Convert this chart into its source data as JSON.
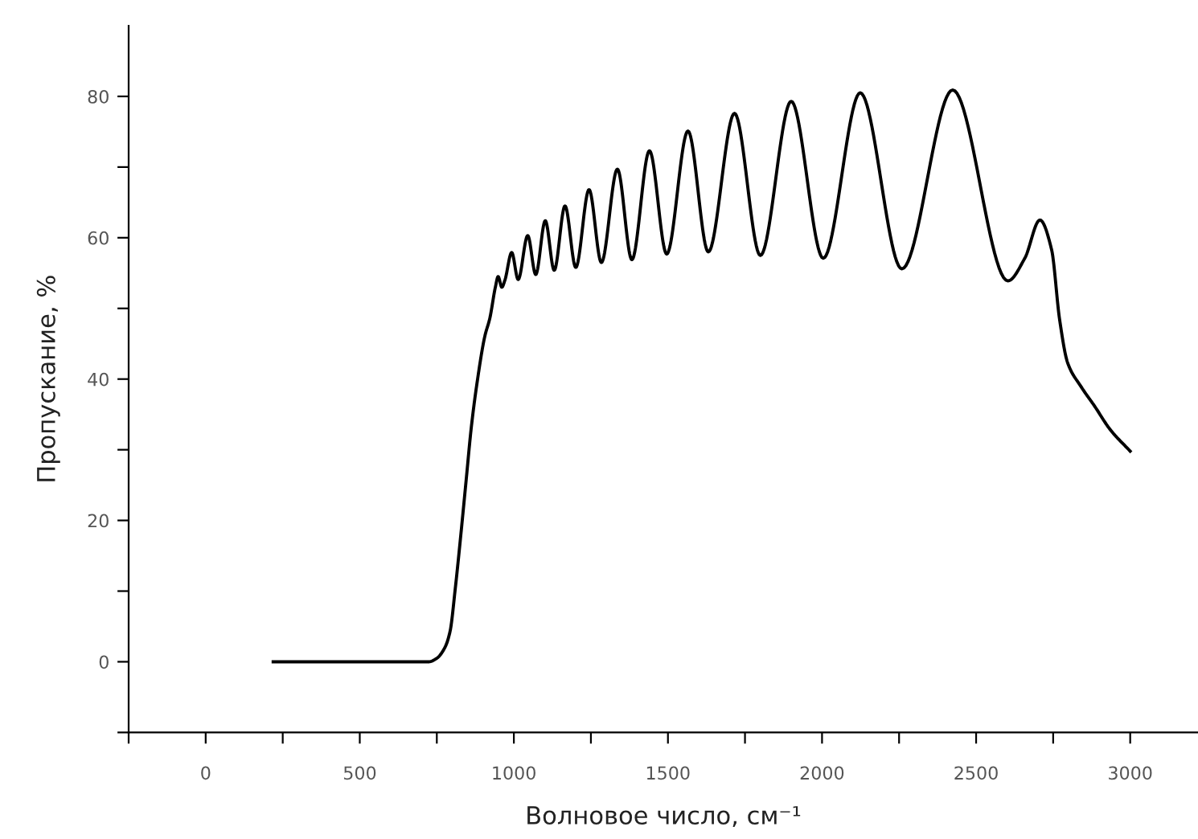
{
  "chart_data": {
    "type": "line",
    "xlabel": "Волновое число, см⁻¹",
    "ylabel": "Пропускание, %",
    "x": [
      219,
      724,
      750,
      776,
      793,
      810,
      828,
      845,
      862,
      880,
      906,
      922,
      940,
      949,
      961,
      971,
      993,
      1014,
      1045,
      1071,
      1102,
      1131,
      1166,
      1201,
      1244,
      1284,
      1336,
      1383,
      1440,
      1496,
      1565,
      1631,
      1716,
      1800,
      1900,
      2004,
      2124,
      2259,
      2424,
      2603,
      2658,
      2707,
      2745,
      2771,
      2797,
      2841,
      2884,
      2936,
      3000
    ],
    "series": [
      {
        "color": "#000000",
        "values": [
          0,
          0,
          0.5,
          2,
          4.3,
          10.4,
          18,
          25.6,
          33.2,
          39.3,
          46.1,
          48.6,
          53,
          54.5,
          53,
          54,
          57.9,
          54.1,
          60.3,
          54.8,
          62.4,
          55.4,
          64.5,
          55.8,
          66.8,
          56.5,
          69.7,
          56.9,
          72.3,
          57.7,
          75.1,
          58,
          77.6,
          57.5,
          79.3,
          57.1,
          80.5,
          55.6,
          80.9,
          53.9,
          57.1,
          62.5,
          58.3,
          48.4,
          42.3,
          38.9,
          36.2,
          32.8,
          29.8
        ]
      }
    ],
    "xlim": [
      -250,
      3220
    ],
    "ylim": [
      -10,
      90
    ],
    "xticks": [
      {
        "value": -250,
        "label": null
      },
      0,
      {
        "value": 250,
        "label": null
      },
      500,
      {
        "value": 750,
        "label": null
      },
      1000,
      {
        "value": 1250,
        "label": null
      },
      1500,
      {
        "value": 1750,
        "label": null
      },
      2000,
      {
        "value": 2250,
        "label": null
      },
      2500,
      {
        "value": 2750,
        "label": null
      },
      3000
    ],
    "yticks": [
      {
        "value": -10,
        "label": null
      },
      0,
      {
        "value": 10,
        "label": null
      },
      20,
      {
        "value": 30,
        "label": null
      },
      40,
      {
        "value": 50,
        "label": null
      },
      60,
      {
        "value": 70,
        "label": null
      },
      80
    ],
    "grid": false,
    "legend": false
  }
}
